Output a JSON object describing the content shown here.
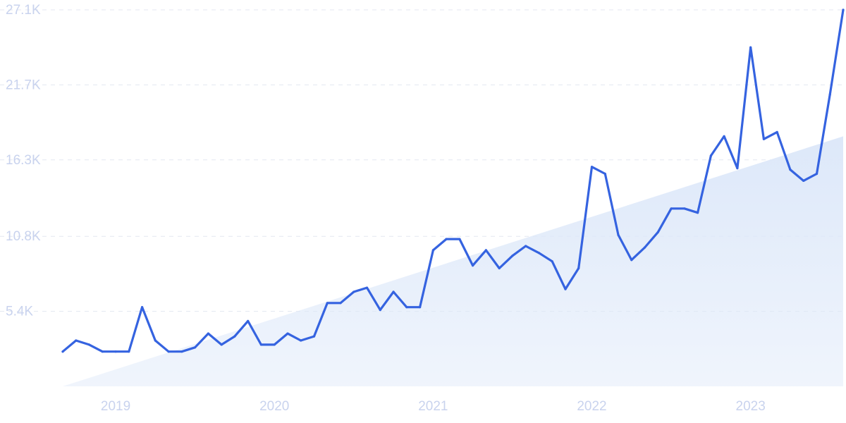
{
  "chart_data": {
    "type": "line",
    "title": "",
    "xlabel": "",
    "ylabel": "",
    "ylim": [
      0,
      27100
    ],
    "xlim": [
      "2018-09",
      "2023-08"
    ],
    "grid": true,
    "line_color": "#3563e0",
    "trend_fill_color": "#dde8f9",
    "y_ticks": [
      {
        "value": 5400,
        "label": "5.4K"
      },
      {
        "value": 10800,
        "label": "10.8K"
      },
      {
        "value": 16300,
        "label": "16.3K"
      },
      {
        "value": 21700,
        "label": "21.7K"
      },
      {
        "value": 27100,
        "label": "27.1K"
      }
    ],
    "x_ticks": [
      {
        "value": "2019-01",
        "label": "2019"
      },
      {
        "value": "2020-01",
        "label": "2020"
      },
      {
        "value": "2021-01",
        "label": "2021"
      },
      {
        "value": "2022-01",
        "label": "2022"
      },
      {
        "value": "2023-01",
        "label": "2023"
      }
    ],
    "trend": [
      {
        "x": "2018-09",
        "y": 0
      },
      {
        "x": "2023-08",
        "y": 18000
      }
    ],
    "series": [
      {
        "x": [
          "2018-09",
          "2018-10",
          "2018-11",
          "2018-12",
          "2019-01",
          "2019-02",
          "2019-03",
          "2019-04",
          "2019-05",
          "2019-06",
          "2019-07",
          "2019-08",
          "2019-09",
          "2019-10",
          "2019-11",
          "2019-12",
          "2020-01",
          "2020-02",
          "2020-03",
          "2020-04",
          "2020-05",
          "2020-06",
          "2020-07",
          "2020-08",
          "2020-09",
          "2020-10",
          "2020-11",
          "2020-12",
          "2021-01",
          "2021-02",
          "2021-03",
          "2021-04",
          "2021-05",
          "2021-06",
          "2021-07",
          "2021-08",
          "2021-09",
          "2021-10",
          "2021-11",
          "2021-12",
          "2022-01",
          "2022-02",
          "2022-03",
          "2022-04",
          "2022-05",
          "2022-06",
          "2022-07",
          "2022-08",
          "2022-09",
          "2022-10",
          "2022-11",
          "2022-12",
          "2023-01",
          "2023-02",
          "2023-03",
          "2023-04",
          "2023-05",
          "2023-06",
          "2023-07",
          "2023-08"
        ],
        "values": [
          2500,
          3300,
          3000,
          2500,
          2500,
          2500,
          5700,
          3300,
          2500,
          2500,
          2800,
          3800,
          3000,
          3600,
          4700,
          3000,
          3000,
          3800,
          3300,
          3600,
          6000,
          6000,
          6800,
          7100,
          5500,
          6800,
          5700,
          5700,
          9800,
          10600,
          10600,
          8700,
          9800,
          8500,
          9400,
          10100,
          9600,
          9000,
          7000,
          8500,
          15800,
          15300,
          10900,
          9100,
          10000,
          11100,
          12800,
          12800,
          12500,
          16600,
          18000,
          15700,
          24400,
          17800,
          18300,
          15600,
          14800,
          15300,
          21000,
          27100
        ]
      }
    ]
  }
}
